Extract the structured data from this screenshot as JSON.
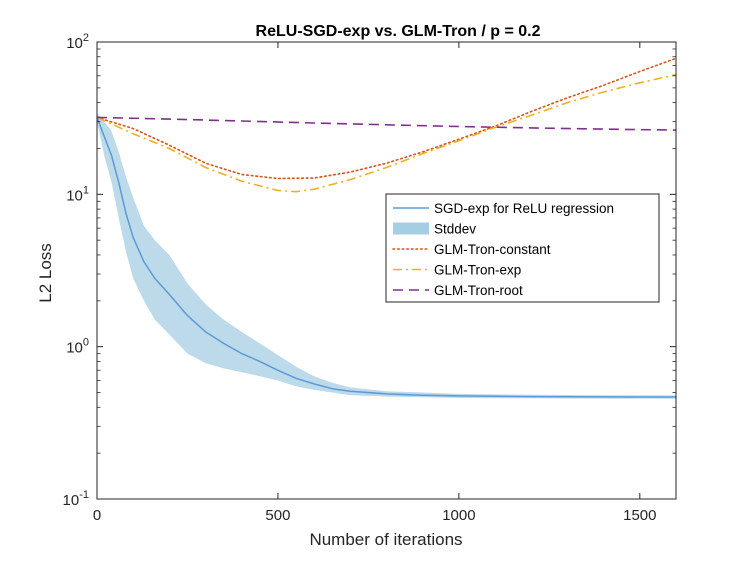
{
  "chart_data": {
    "type": "line",
    "title": "ReLU-SGD-exp vs. GLM-Tron / p = 0.2",
    "xlabel": "Number of iterations",
    "ylabel": "L2 Loss",
    "xlim": [
      0,
      1600
    ],
    "ylim": [
      0.1,
      100
    ],
    "yscale": "log",
    "grid": false,
    "legend_position": "right-center",
    "x_ticks": [
      0,
      500,
      1000,
      1500
    ],
    "x_tick_labels": [
      "0",
      "500",
      "1000",
      "1500"
    ],
    "y_ticks": [
      0.1,
      1,
      10,
      100
    ],
    "y_tick_labels": [
      {
        "base": "10",
        "exp": "-1"
      },
      {
        "base": "10",
        "exp": "0"
      },
      {
        "base": "10",
        "exp": "1"
      },
      {
        "base": "10",
        "exp": "2"
      }
    ],
    "series": [
      {
        "name": "SGD-exp for ReLU regression",
        "style": "solid",
        "color": "#5b9bd5",
        "x": [
          0,
          20,
          40,
          60,
          80,
          100,
          130,
          160,
          200,
          250,
          300,
          350,
          400,
          450,
          500,
          550,
          600,
          650,
          700,
          800,
          900,
          1000,
          1200,
          1400,
          1600
        ],
        "y": [
          32,
          24,
          18,
          12,
          7.5,
          5.2,
          3.6,
          2.8,
          2.2,
          1.6,
          1.25,
          1.05,
          0.9,
          0.8,
          0.7,
          0.62,
          0.57,
          0.53,
          0.51,
          0.49,
          0.48,
          0.475,
          0.47,
          0.468,
          0.467
        ]
      },
      {
        "name": "Stddev",
        "style": "band",
        "color": "#a6cee3",
        "x": [
          0,
          20,
          40,
          60,
          80,
          100,
          130,
          160,
          200,
          250,
          300,
          350,
          400,
          450,
          500,
          550,
          600,
          650,
          700,
          800,
          900,
          1000,
          1200,
          1400,
          1600
        ],
        "lower": [
          30,
          18,
          12,
          7,
          4.2,
          2.8,
          2.0,
          1.5,
          1.2,
          0.9,
          0.78,
          0.72,
          0.68,
          0.64,
          0.6,
          0.55,
          0.52,
          0.5,
          0.48,
          0.47,
          0.465,
          0.46,
          0.458,
          0.456,
          0.455
        ],
        "upper": [
          34,
          30,
          26,
          19,
          13,
          9.5,
          6.2,
          5.0,
          4.0,
          2.6,
          1.9,
          1.5,
          1.25,
          1.05,
          0.88,
          0.74,
          0.64,
          0.58,
          0.54,
          0.51,
          0.5,
          0.49,
          0.483,
          0.48,
          0.479
        ]
      },
      {
        "name": "GLM-Tron-constant",
        "style": "dotted",
        "color": "#d95319",
        "x": [
          0,
          100,
          200,
          300,
          400,
          500,
          600,
          700,
          800,
          900,
          1000,
          1100,
          1200,
          1300,
          1400,
          1500,
          1600
        ],
        "y": [
          32,
          27,
          21,
          16,
          13.5,
          12.7,
          12.8,
          14,
          16,
          19,
          23,
          28,
          35,
          43,
          52,
          64,
          78
        ]
      },
      {
        "name": "GLM-Tron-exp",
        "style": "dashdot",
        "color": "#edb120",
        "x": [
          0,
          100,
          200,
          300,
          400,
          500,
          550,
          600,
          700,
          800,
          900,
          1000,
          1100,
          1200,
          1300,
          1400,
          1500,
          1600
        ],
        "y": [
          32,
          25,
          20,
          15,
          12.2,
          10.6,
          10.4,
          10.8,
          12.5,
          15,
          18.5,
          22.5,
          27.5,
          33,
          40,
          47,
          54,
          61
        ]
      },
      {
        "name": "GLM-Tron-root",
        "style": "dashed",
        "color": "#7e2f8e",
        "x": [
          0,
          200,
          400,
          600,
          800,
          1000,
          1200,
          1400,
          1600
        ],
        "y": [
          32,
          31.2,
          30.3,
          29.4,
          28.6,
          27.9,
          27.3,
          26.8,
          26.4
        ]
      }
    ]
  }
}
